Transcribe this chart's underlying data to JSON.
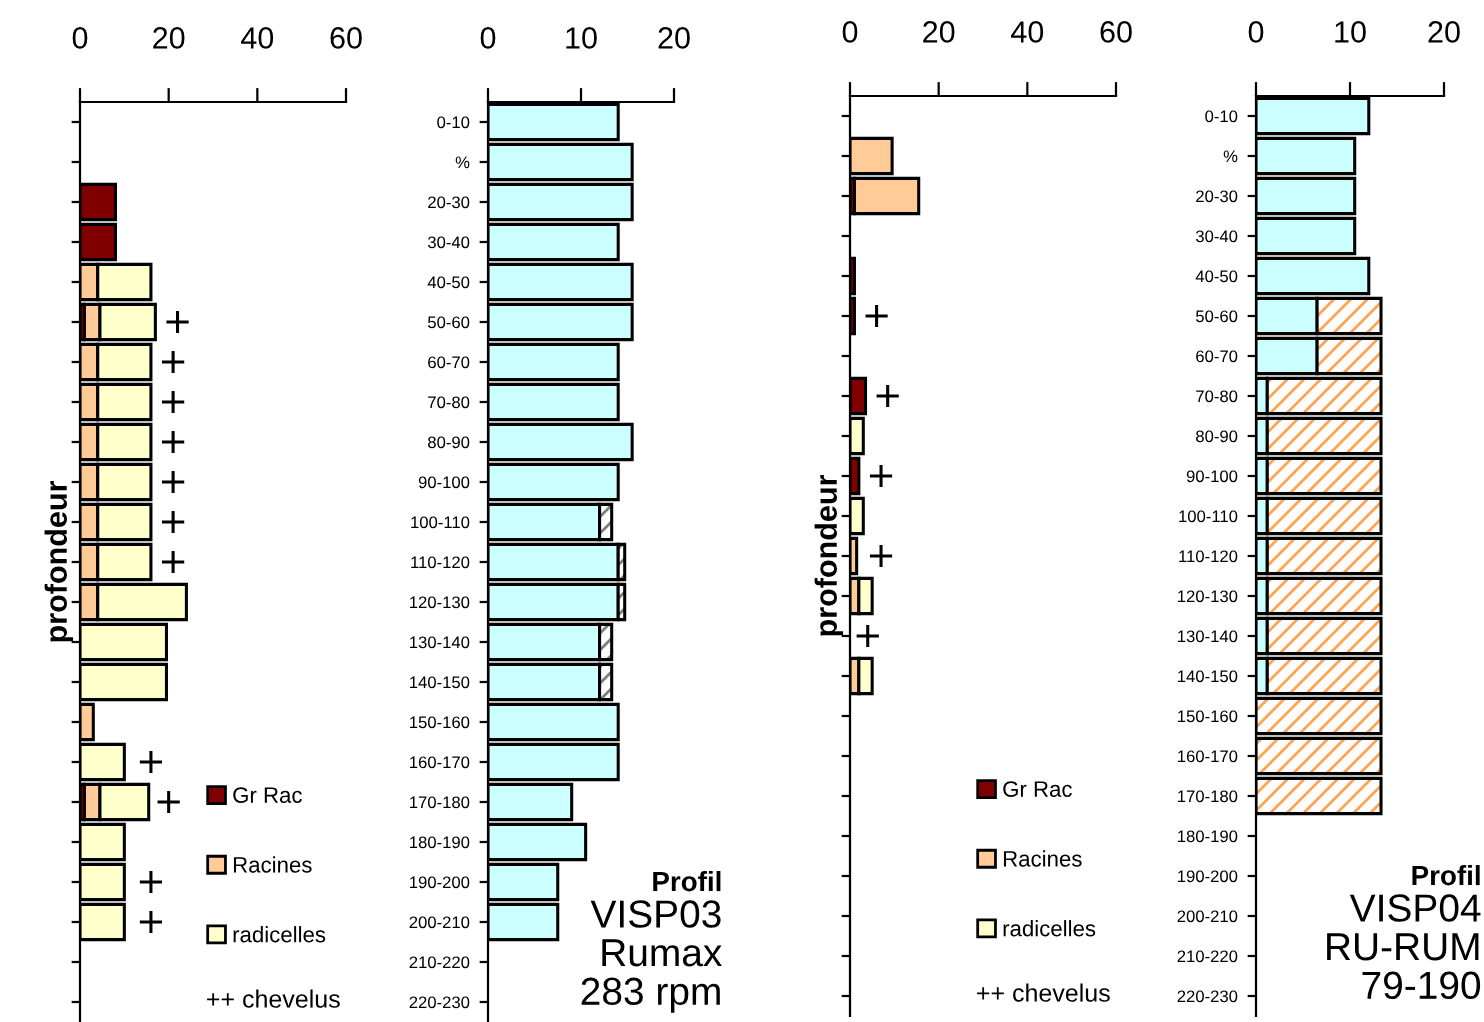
{
  "chart_data": [
    {
      "type": "bar",
      "orientation": "horizontal",
      "stacked": true,
      "ylabel": "profondeur",
      "categories": [
        null,
        null,
        null,
        null,
        null,
        null,
        null,
        null,
        null,
        null,
        null,
        null,
        null,
        null,
        null,
        null,
        null,
        null,
        null,
        null,
        null,
        null,
        null
      ],
      "xlim": [
        0,
        60
      ],
      "xticks": [
        0,
        20,
        40,
        60
      ],
      "legend": "bottom right",
      "grid": false,
      "series": [
        {
          "name": "Gr Rac",
          "color": "#800000",
          "values": [
            null,
            null,
            8,
            8,
            null,
            1,
            null,
            null,
            null,
            null,
            null,
            null,
            null,
            null,
            null,
            null,
            null,
            1,
            null,
            null,
            null,
            null,
            null
          ]
        },
        {
          "name": "Racines",
          "color": "#ffcc99",
          "values": [
            null,
            null,
            null,
            null,
            4,
            3.5,
            4,
            4,
            4,
            4,
            4,
            4,
            4,
            null,
            null,
            3,
            null,
            3.5,
            null,
            null,
            null,
            null,
            null
          ]
        },
        {
          "name": "radicelles",
          "color": "#ffffcc",
          "values": [
            null,
            null,
            null,
            null,
            12,
            12.5,
            12,
            12,
            12,
            12,
            12,
            12,
            20,
            19.5,
            19.5,
            null,
            10,
            11,
            10,
            10,
            10,
            null,
            null
          ]
        },
        {
          "type": "scatter",
          "marker": "cross",
          "color": "#000000",
          "values": [
            null,
            null,
            null,
            null,
            null,
            22,
            21,
            21,
            21,
            21,
            21,
            21,
            null,
            null,
            null,
            null,
            16,
            20,
            null,
            16,
            16,
            null,
            null
          ]
        }
      ],
      "annotations": [
        "++ chevelus"
      ]
    },
    {
      "type": "bar",
      "orientation": "horizontal",
      "stacked": true,
      "categories": [
        "0-10",
        "%",
        "20-30",
        "30-40",
        "40-50",
        "50-60",
        "60-70",
        "70-80",
        "80-90",
        "90-100",
        "100-110",
        "110-120",
        "120-130",
        "130-140",
        "140-150",
        "150-160",
        "160-170",
        "170-180",
        "180-190",
        "190-200",
        "200-210",
        "210-220",
        "220-230"
      ],
      "xlim": [
        0,
        20
      ],
      "xticks": [
        0,
        10,
        20
      ],
      "grid": false,
      "series": [
        {
          "color": "#ccffff",
          "values": [
            14,
            15.5,
            15.5,
            14,
            15.5,
            15.5,
            14,
            14,
            15.5,
            14,
            12,
            14,
            14,
            12,
            12,
            14,
            14,
            9,
            10.5,
            7.5,
            7.5,
            null,
            null
          ]
        },
        {
          "color": "#808080",
          "values": [
            null,
            null,
            null,
            null,
            null,
            null,
            null,
            null,
            null,
            null,
            1.3,
            0.7,
            0.7,
            1.3,
            1.3,
            null,
            null,
            null,
            null,
            null,
            null,
            null,
            null
          ]
        }
      ],
      "annotations": [
        "Profil",
        "VISP03",
        "Rumax",
        "283 rpm"
      ]
    },
    {
      "type": "bar",
      "orientation": "horizontal",
      "stacked": true,
      "ylabel": "profondeur",
      "categories": [
        null,
        null,
        null,
        null,
        null,
        null,
        null,
        null,
        null,
        null,
        null,
        null,
        null,
        null,
        null,
        null,
        null,
        null,
        null,
        null,
        null,
        null,
        null
      ],
      "xlim": [
        0,
        60
      ],
      "xticks": [
        0,
        20,
        40,
        60
      ],
      "legend": "bottom right",
      "grid": false,
      "series": [
        {
          "name": "Gr Rac",
          "color": "#800000",
          "values": [
            null,
            null,
            1,
            null,
            1,
            1,
            null,
            3.5,
            null,
            2,
            null,
            null,
            null,
            null,
            null,
            null,
            null,
            null,
            null,
            null,
            null,
            null,
            null
          ]
        },
        {
          "name": "Racines",
          "color": "#ffcc99",
          "values": [
            null,
            9.5,
            14.5,
            null,
            null,
            null,
            null,
            null,
            null,
            null,
            null,
            1.5,
            2,
            null,
            2,
            null,
            null,
            null,
            null,
            null,
            null,
            null,
            null
          ]
        },
        {
          "name": "radicelles",
          "color": "#ffffcc",
          "values": [
            null,
            null,
            null,
            null,
            null,
            null,
            null,
            null,
            3,
            null,
            3,
            null,
            3,
            null,
            3,
            null,
            null,
            null,
            null,
            null,
            null,
            null,
            null
          ]
        },
        {
          "type": "scatter",
          "marker": "cross",
          "color": "#000000",
          "values": [
            null,
            null,
            null,
            null,
            null,
            6,
            null,
            8.5,
            null,
            7,
            null,
            7,
            null,
            4,
            null,
            null,
            null,
            null,
            null,
            null,
            null,
            null,
            null
          ]
        }
      ],
      "annotations": [
        "++ chevelus"
      ]
    },
    {
      "type": "bar",
      "orientation": "horizontal",
      "stacked": true,
      "categories": [
        "0-10",
        "%",
        "20-30",
        "30-40",
        "40-50",
        "50-60",
        "60-70",
        "70-80",
        "80-90",
        "90-100",
        "100-110",
        "110-120",
        "120-130",
        "130-140",
        "140-150",
        "150-160",
        "160-170",
        "170-180",
        "180-190",
        "190-200",
        "200-210",
        "210-220",
        "220-230"
      ],
      "xlim": [
        0,
        20
      ],
      "xticks": [
        0,
        10,
        20
      ],
      "grid": false,
      "series": [
        {
          "color": "#ccffff",
          "values": [
            12,
            10.5,
            10.5,
            10.5,
            12,
            6.5,
            6.5,
            1.2,
            1.2,
            1.2,
            1.2,
            1.2,
            1.2,
            1.2,
            1.2,
            null,
            null,
            null,
            null,
            null,
            null,
            null,
            null
          ]
        },
        {
          "color": "#ffa54f",
          "values": [
            null,
            null,
            null,
            null,
            null,
            6.8,
            6.8,
            12.1,
            12.1,
            12.1,
            12.1,
            12.1,
            12.1,
            12.1,
            12.1,
            13.3,
            13.3,
            13.3,
            null,
            null,
            null,
            null,
            null
          ]
        }
      ],
      "annotations": [
        "Profil",
        "VISP04",
        "RU-RUM",
        "79-190"
      ]
    }
  ]
}
